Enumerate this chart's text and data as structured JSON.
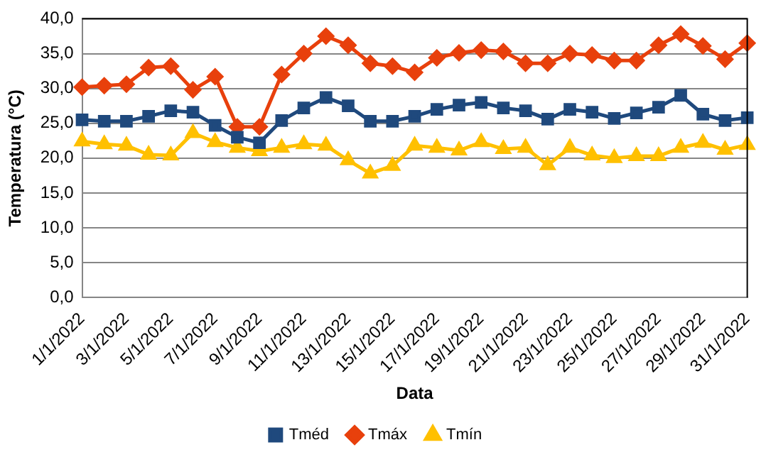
{
  "chart_data": {
    "type": "line",
    "xlabel": "Data",
    "ylabel": "Temperatura (°C)",
    "categories": [
      "1/1/2022",
      null,
      "3/1/2022",
      null,
      "5/1/2022",
      null,
      "7/1/2022",
      null,
      "9/1/2022",
      null,
      "11/1/2022",
      null,
      "13/1/2022",
      null,
      "15/1/2022",
      null,
      "17/1/2022",
      null,
      "19/1/2022",
      null,
      "21/1/2022",
      null,
      "23/1/2022",
      null,
      "25/1/2022",
      null,
      "27/1/2022",
      null,
      "29/1/2022",
      null,
      "31/1/2022"
    ],
    "series": [
      {
        "name": "Tméd",
        "color": "#1f497d",
        "marker": "square",
        "values": [
          25.5,
          25.3,
          25.3,
          26,
          26.8,
          26.6,
          24.7,
          23,
          22.2,
          25.4,
          27.2,
          28.7,
          27.5,
          25.3,
          25.3,
          26,
          27,
          27.6,
          28,
          27.2,
          26.8,
          25.6,
          27,
          26.6,
          25.7,
          26.5,
          27.3,
          29,
          26.3,
          25.4,
          25.8
        ]
      },
      {
        "name": "Tmáx",
        "color": "#e8400c",
        "marker": "diamond",
        "values": [
          30.2,
          30.4,
          30.6,
          33,
          33.2,
          29.8,
          31.7,
          24.5,
          24.5,
          32,
          35,
          37.5,
          36.2,
          33.6,
          33.2,
          32.3,
          34.4,
          35.1,
          35.5,
          35.3,
          33.6,
          33.6,
          35,
          34.8,
          34,
          34,
          36.2,
          37.8,
          36.1,
          34.2,
          36.5
        ]
      },
      {
        "name": "Tmín",
        "color": "#ffc000",
        "marker": "triangle",
        "values": [
          22.4,
          22,
          21.8,
          20.5,
          20.4,
          23.6,
          22.3,
          21.5,
          21,
          21.5,
          22,
          21.8,
          19.7,
          17.8,
          18.9,
          21.8,
          21.5,
          21.1,
          22.3,
          21.3,
          21.5,
          19,
          21.5,
          20.4,
          20,
          20.3,
          20.3,
          21.5,
          22.2,
          21.2,
          21.9
        ]
      }
    ],
    "ylim": [
      0,
      40
    ],
    "yticks": [
      {
        "value": 0,
        "label": "0,0"
      },
      {
        "value": 5,
        "label": "5,0"
      },
      {
        "value": 10,
        "label": "10,0"
      },
      {
        "value": 15,
        "label": "15,0"
      },
      {
        "value": 20,
        "label": "20,0"
      },
      {
        "value": 25,
        "label": "25,0"
      },
      {
        "value": 30,
        "label": "30,0"
      },
      {
        "value": 35,
        "label": "35,0"
      },
      {
        "value": 40,
        "label": "40,0"
      }
    ],
    "grid": "y",
    "legend": "bottom"
  }
}
